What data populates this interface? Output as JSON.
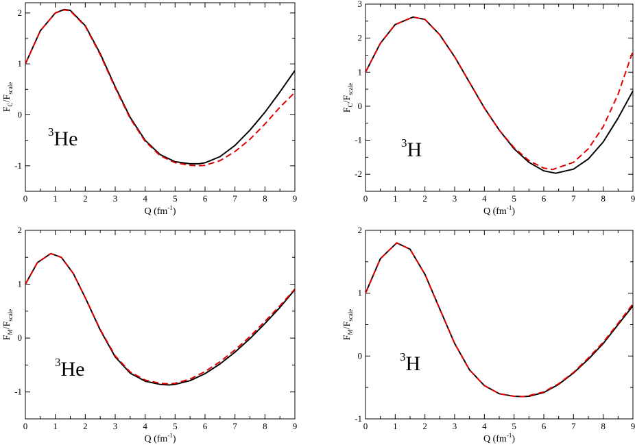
{
  "chart_data": [
    {
      "type": "line",
      "panel": "top-left",
      "xlabel": "Q (fm",
      "xlabel_sup": "-1",
      "xlabel_end": ")",
      "ylabel_main": "F",
      "ylabel_sub": "C",
      "ylabel_mid": "/F",
      "ylabel_sub2": "scale",
      "label_sup": "3",
      "label_main": "He",
      "xlim": [
        0,
        9
      ],
      "ylim": [
        -1.5,
        2.2
      ],
      "xticks": [
        0,
        1,
        2,
        3,
        4,
        5,
        6,
        7,
        8,
        9
      ],
      "yticks": [
        -1,
        0,
        1,
        2
      ],
      "series": [
        {
          "style": "solid",
          "color": "#000000",
          "x": [
            0,
            0.5,
            1,
            1.3,
            1.5,
            2,
            2.5,
            3,
            3.5,
            4,
            4.5,
            5,
            5.5,
            5.8,
            6,
            6.5,
            7,
            7.5,
            8,
            8.5,
            9
          ],
          "y": [
            1.0,
            1.65,
            2.0,
            2.07,
            2.05,
            1.75,
            1.2,
            0.55,
            -0.05,
            -0.5,
            -0.78,
            -0.92,
            -0.96,
            -0.96,
            -0.94,
            -0.82,
            -0.6,
            -0.3,
            0.05,
            0.45,
            0.87
          ]
        },
        {
          "style": "dashed",
          "color": "#e00000",
          "x": [
            0,
            0.5,
            1,
            1.3,
            1.5,
            2,
            2.5,
            3,
            3.5,
            4,
            4.5,
            5,
            5.5,
            5.8,
            6,
            6.5,
            7,
            7.5,
            8,
            8.5,
            9
          ],
          "y": [
            1.0,
            1.65,
            2.0,
            2.06,
            2.04,
            1.74,
            1.18,
            0.53,
            -0.07,
            -0.52,
            -0.8,
            -0.94,
            -0.99,
            -1.0,
            -0.99,
            -0.9,
            -0.72,
            -0.48,
            -0.18,
            0.15,
            0.44
          ]
        }
      ]
    },
    {
      "type": "line",
      "panel": "top-right",
      "xlabel": "Q (fm",
      "xlabel_sup": "-1",
      "xlabel_end": ")",
      "ylabel_main": "F",
      "ylabel_sub": "C",
      "ylabel_mid": "/F",
      "ylabel_sub2": "scale",
      "label_sup": "3",
      "label_main": "H",
      "xlim": [
        0,
        9
      ],
      "ylim": [
        -2.5,
        3
      ],
      "xticks": [
        0,
        1,
        2,
        3,
        4,
        5,
        6,
        7,
        8,
        9
      ],
      "yticks": [
        -2,
        -1,
        0,
        1,
        2,
        3
      ],
      "series": [
        {
          "style": "solid",
          "color": "#000000",
          "x": [
            0,
            0.5,
            1,
            1.6,
            2,
            2.5,
            3,
            3.5,
            4,
            4.5,
            5,
            5.5,
            6,
            6.4,
            7,
            7.5,
            8,
            8.5,
            9
          ],
          "y": [
            1.0,
            1.85,
            2.4,
            2.62,
            2.55,
            2.1,
            1.45,
            0.7,
            -0.05,
            -0.7,
            -1.25,
            -1.65,
            -1.9,
            -1.97,
            -1.85,
            -1.55,
            -1.05,
            -0.35,
            0.45
          ]
        },
        {
          "style": "dashed",
          "color": "#e00000",
          "x": [
            0,
            0.5,
            1,
            1.6,
            2,
            2.5,
            3,
            3.5,
            4,
            4.5,
            5,
            5.5,
            6,
            6.3,
            7,
            7.5,
            8,
            8.5,
            9
          ],
          "y": [
            1.0,
            1.85,
            2.4,
            2.62,
            2.55,
            2.1,
            1.45,
            0.7,
            -0.05,
            -0.7,
            -1.22,
            -1.6,
            -1.82,
            -1.86,
            -1.65,
            -1.25,
            -0.6,
            0.35,
            1.62
          ]
        }
      ]
    },
    {
      "type": "line",
      "panel": "bottom-left",
      "xlabel": "Q (fm",
      "xlabel_sup": "-1",
      "xlabel_end": ")",
      "ylabel_main": "F",
      "ylabel_sub": "M",
      "ylabel_mid": "/F",
      "ylabel_sub2": "scale",
      "label_sup": "3",
      "label_main": "He",
      "xlim": [
        0,
        9
      ],
      "ylim": [
        -1.5,
        2
      ],
      "xticks": [
        0,
        1,
        2,
        3,
        4,
        5,
        6,
        7,
        8,
        9
      ],
      "yticks": [
        -1,
        0,
        1,
        2
      ],
      "series": [
        {
          "style": "solid",
          "color": "#000000",
          "x": [
            0,
            0.4,
            0.85,
            1.2,
            1.6,
            2,
            2.5,
            3,
            3.5,
            4,
            4.5,
            4.8,
            5,
            5.5,
            6,
            6.5,
            7,
            7.5,
            8,
            8.5,
            9
          ],
          "y": [
            1.0,
            1.4,
            1.57,
            1.5,
            1.2,
            0.75,
            0.15,
            -0.35,
            -0.65,
            -0.8,
            -0.86,
            -0.87,
            -0.86,
            -0.79,
            -0.66,
            -0.48,
            -0.26,
            -0.01,
            0.27,
            0.57,
            0.9
          ]
        },
        {
          "style": "dashed",
          "color": "#e00000",
          "x": [
            0,
            0.4,
            0.85,
            1.2,
            1.6,
            2,
            2.5,
            3,
            3.5,
            4,
            4.5,
            4.8,
            5,
            5.5,
            6,
            6.5,
            7,
            7.5,
            8,
            8.5,
            9
          ],
          "y": [
            1.0,
            1.4,
            1.57,
            1.5,
            1.2,
            0.75,
            0.16,
            -0.33,
            -0.63,
            -0.78,
            -0.84,
            -0.85,
            -0.84,
            -0.76,
            -0.62,
            -0.44,
            -0.22,
            0.03,
            0.31,
            0.6,
            0.91
          ]
        }
      ]
    },
    {
      "type": "line",
      "panel": "bottom-right",
      "xlabel": "Q (fm",
      "xlabel_sup": "-1",
      "xlabel_end": ")",
      "ylabel_main": "F",
      "ylabel_sub": "M",
      "ylabel_mid": "/F",
      "ylabel_sub2": "scale",
      "label_sup": "3",
      "label_main": "H",
      "xlim": [
        0,
        9
      ],
      "ylim": [
        -1,
        2
      ],
      "xticks": [
        0,
        1,
        2,
        3,
        4,
        5,
        6,
        7,
        8,
        9
      ],
      "yticks": [
        -1,
        0,
        1,
        2
      ],
      "series": [
        {
          "style": "solid",
          "color": "#000000",
          "x": [
            0,
            0.5,
            1.05,
            1.5,
            2,
            2.5,
            3,
            3.5,
            4,
            4.5,
            5,
            5.3,
            5.5,
            6,
            6.5,
            7,
            7.5,
            8,
            8.5,
            9
          ],
          "y": [
            1.0,
            1.55,
            1.8,
            1.7,
            1.3,
            0.75,
            0.2,
            -0.22,
            -0.47,
            -0.6,
            -0.64,
            -0.645,
            -0.64,
            -0.58,
            -0.45,
            -0.27,
            -0.05,
            0.2,
            0.5,
            0.8
          ]
        },
        {
          "style": "dashed",
          "color": "#e00000",
          "x": [
            0,
            0.5,
            1.05,
            1.5,
            2,
            2.5,
            3,
            3.5,
            4,
            4.5,
            5,
            5.3,
            5.5,
            6,
            6.5,
            7,
            7.5,
            8,
            8.5,
            9
          ],
          "y": [
            1.0,
            1.55,
            1.8,
            1.7,
            1.3,
            0.75,
            0.2,
            -0.22,
            -0.47,
            -0.6,
            -0.64,
            -0.645,
            -0.63,
            -0.57,
            -0.44,
            -0.26,
            -0.03,
            0.22,
            0.52,
            0.83
          ]
        }
      ]
    }
  ]
}
